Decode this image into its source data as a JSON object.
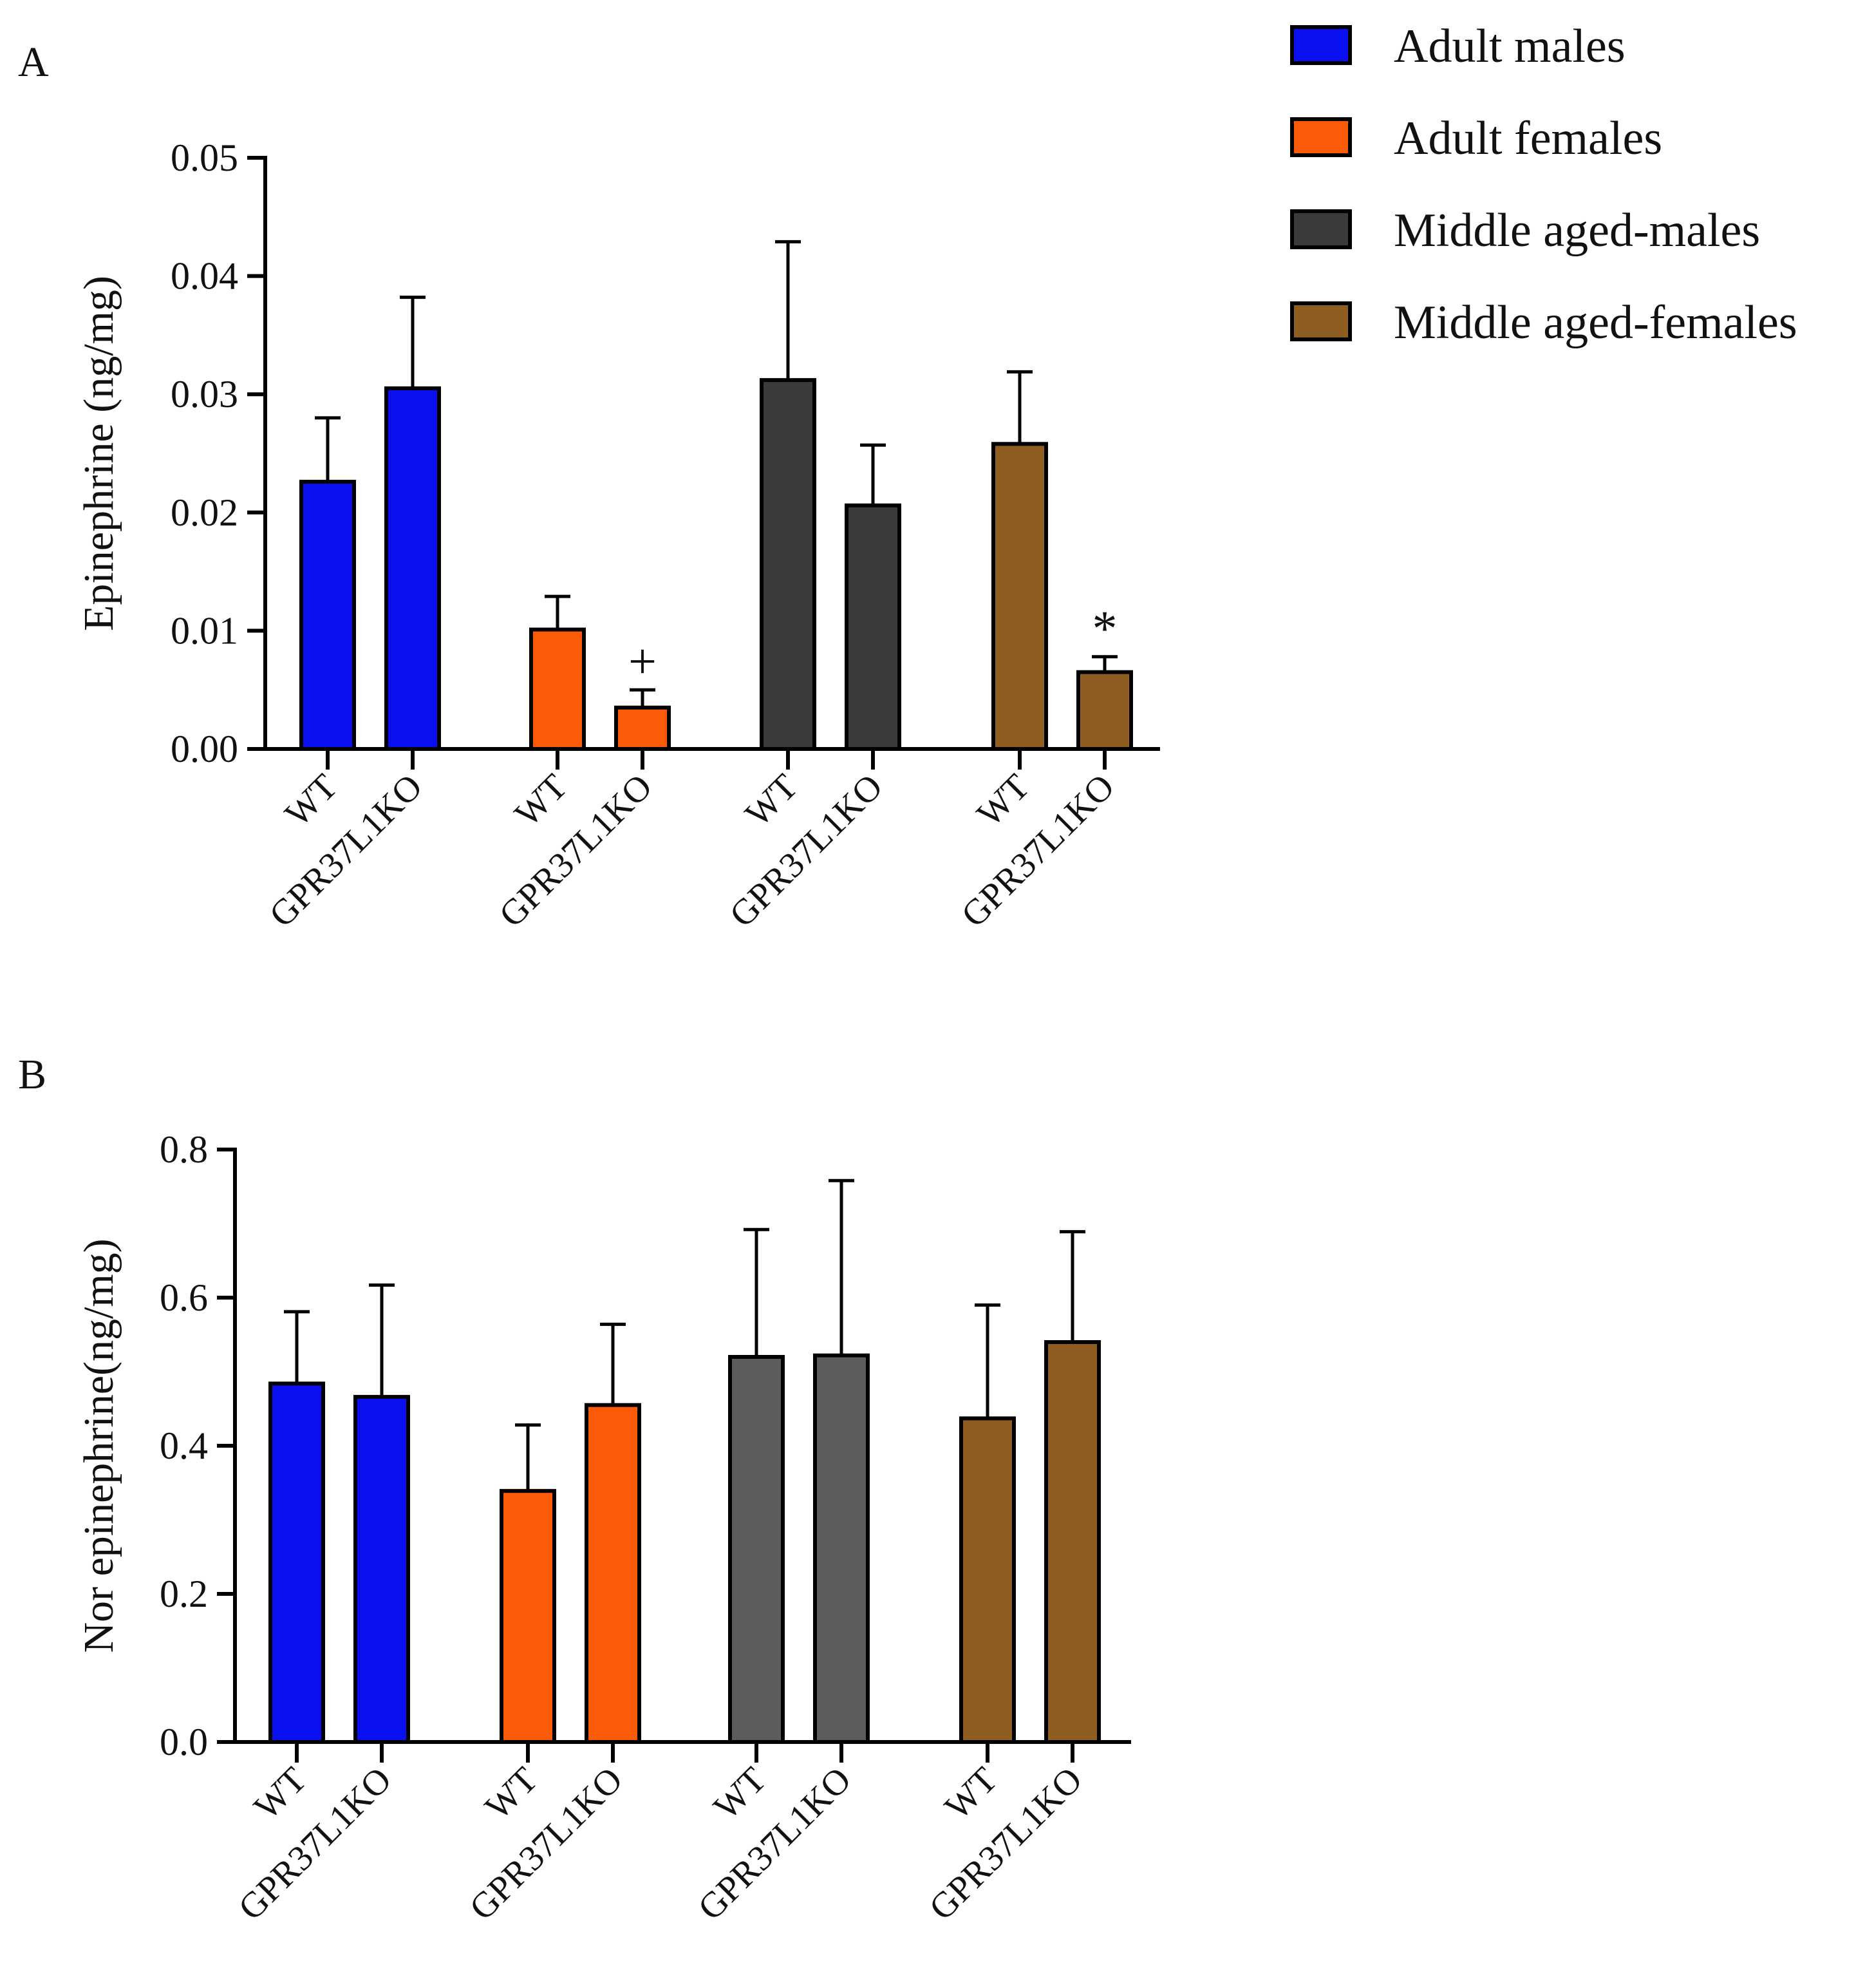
{
  "legend": [
    {
      "label": "Adult males",
      "color": "#0a10f0"
    },
    {
      "label": "Adult females",
      "color": "#fb5a07"
    },
    {
      "label": "Middle aged-males",
      "color": "#3a3a3a"
    },
    {
      "label": "Middle aged-females",
      "color": "#8e5d21"
    }
  ],
  "chart_data": [
    {
      "type": "bar",
      "panel_label": "A",
      "ylabel": "Epinephrine (ng/mg)",
      "ylim": [
        0,
        0.05
      ],
      "yticks": [
        "0.00",
        "0.01",
        "0.02",
        "0.03",
        "0.04",
        "0.05"
      ],
      "categories": [
        "WT",
        "GPR37L1KO"
      ],
      "series": [
        {
          "name": "Adult males",
          "color": "#0a10f0",
          "values": [
            0.0226,
            0.0305
          ],
          "errors": [
            0.0054,
            0.0077
          ],
          "annotations": [
            "",
            ""
          ]
        },
        {
          "name": "Adult females",
          "color": "#fb5a07",
          "values": [
            0.0101,
            0.0035
          ],
          "errors": [
            0.0028,
            0.0015
          ],
          "annotations": [
            "",
            "+"
          ]
        },
        {
          "name": "Middle aged-males",
          "color": "#3a3a3a",
          "values": [
            0.0312,
            0.0206
          ],
          "errors": [
            0.0117,
            0.0051
          ],
          "annotations": [
            "",
            ""
          ]
        },
        {
          "name": "Middle aged-females",
          "color": "#8e5d21",
          "values": [
            0.0258,
            0.0065
          ],
          "errors": [
            0.0061,
            0.0013
          ],
          "annotations": [
            "",
            "*"
          ]
        }
      ]
    },
    {
      "type": "bar",
      "panel_label": "B",
      "ylabel": "Nor epinephrine(ng/mg)",
      "ylim": [
        0,
        0.8
      ],
      "yticks": [
        "0.0",
        "0.2",
        "0.4",
        "0.6",
        "0.8"
      ],
      "categories": [
        "WT",
        "GPR37L1KO"
      ],
      "series": [
        {
          "name": "Adult males",
          "color": "#0a10f0",
          "values": [
            0.484,
            0.466
          ],
          "errors": [
            0.097,
            0.151
          ],
          "annotations": [
            "",
            ""
          ]
        },
        {
          "name": "Adult females",
          "color": "#fb5a07",
          "values": [
            0.339,
            0.455
          ],
          "errors": [
            0.089,
            0.109
          ],
          "annotations": [
            "",
            ""
          ]
        },
        {
          "name": "Middle aged-males",
          "color": "#5c5c5c",
          "values": [
            0.52,
            0.522
          ],
          "errors": [
            0.172,
            0.236
          ],
          "annotations": [
            "",
            ""
          ]
        },
        {
          "name": "Middle aged-females",
          "color": "#8e5d21",
          "values": [
            0.437,
            0.54
          ],
          "errors": [
            0.153,
            0.149
          ],
          "annotations": [
            "",
            ""
          ]
        }
      ]
    }
  ]
}
